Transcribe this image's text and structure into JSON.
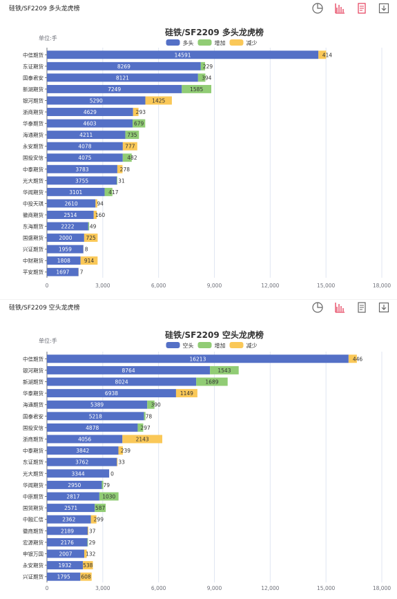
{
  "colors": {
    "long": "#5470c6",
    "short": "#5470c6",
    "increase": "#91cc75",
    "decrease": "#fac858",
    "axis": "#6e7079",
    "grid": "#e0e6f1"
  },
  "toolbar_icons": [
    "pie-chart-icon",
    "bar-chart-icon",
    "data-view-icon",
    "download-icon"
  ],
  "panels": [
    {
      "header_title": "硅铁/SF2209 多头龙虎榜",
      "unit_label": "单位:手",
      "chart_data": {
        "type": "bar",
        "orientation": "horizontal",
        "stacked": true,
        "title": "硅铁/SF2209 多头龙虎榜",
        "legend": [
          "多头",
          "增加",
          "减少"
        ],
        "legend_position": "top-center",
        "xlim": [
          0,
          18000
        ],
        "xticks": [
          "0",
          "3,000",
          "6,000",
          "9,000",
          "12,000",
          "15,000",
          "18,000"
        ],
        "categories": [
          "中信期货",
          "东证期货",
          "国泰君安",
          "新湖期货",
          "银河期货",
          "浙商期货",
          "华泰期货",
          "海通期货",
          "永安期货",
          "国投安信",
          "中泰期货",
          "光大期货",
          "华闻期货",
          "中投天琪",
          "徽商期货",
          "东海期货",
          "国盛期货",
          "兴证期货",
          "中财期货",
          "平安期货"
        ],
        "series": [
          {
            "name": "多头",
            "values": [
              14591,
              8269,
              8121,
              7249,
              5290,
              4629,
              4603,
              4211,
              4078,
              4075,
              3783,
              3755,
              3101,
              2610,
              2514,
              2222,
              2000,
              1959,
              1808,
              1697
            ]
          },
          {
            "name": "增加",
            "values": [
              null,
              229,
              394,
              1585,
              null,
              null,
              679,
              735,
              null,
              482,
              null,
              31,
              417,
              null,
              null,
              49,
              null,
              null,
              null,
              null
            ]
          },
          {
            "name": "减少",
            "values": [
              414,
              null,
              null,
              null,
              1425,
              293,
              null,
              null,
              777,
              null,
              278,
              null,
              null,
              94,
              160,
              null,
              725,
              8,
              914,
              7
            ]
          }
        ],
        "grid": true
      }
    },
    {
      "header_title": "硅铁/SF2209 空头龙虎榜",
      "unit_label": "单位:手",
      "chart_data": {
        "type": "bar",
        "orientation": "horizontal",
        "stacked": true,
        "title": "硅铁/SF2209 空头龙虎榜",
        "legend": [
          "空头",
          "增加",
          "减少"
        ],
        "legend_position": "top-center",
        "xlim": [
          0,
          18000
        ],
        "xticks": [
          "0",
          "3,000",
          "6,000",
          "9,000",
          "12,000",
          "15,000",
          "18,000"
        ],
        "categories": [
          "中信期货",
          "银河期货",
          "新湖期货",
          "华泰期货",
          "海通期货",
          "国泰君安",
          "国投安信",
          "浙商期货",
          "中泰期货",
          "东证期货",
          "光大期货",
          "华闻期货",
          "中原期货",
          "国贸期货",
          "中融汇信",
          "徽商期货",
          "宏源期货",
          "申银万国",
          "永安期货",
          "兴证期货"
        ],
        "series": [
          {
            "name": "空头",
            "values": [
              16213,
              8764,
              8024,
              6938,
              5389,
              5218,
              4878,
              4056,
              3842,
              3762,
              3344,
              2950,
              2817,
              2571,
              2362,
              2189,
              2176,
              2007,
              1932,
              1795
            ]
          },
          {
            "name": "增加",
            "values": [
              null,
              1543,
              1689,
              null,
              390,
              78,
              297,
              null,
              null,
              null,
              null,
              79,
              1030,
              587,
              null,
              null,
              29,
              null,
              null,
              null
            ]
          },
          {
            "name": "减少",
            "values": [
              446,
              null,
              null,
              1149,
              null,
              null,
              null,
              2143,
              239,
              33,
              0,
              null,
              null,
              null,
              299,
              37,
              null,
              132,
              538,
              608
            ]
          }
        ],
        "grid": true
      }
    }
  ]
}
